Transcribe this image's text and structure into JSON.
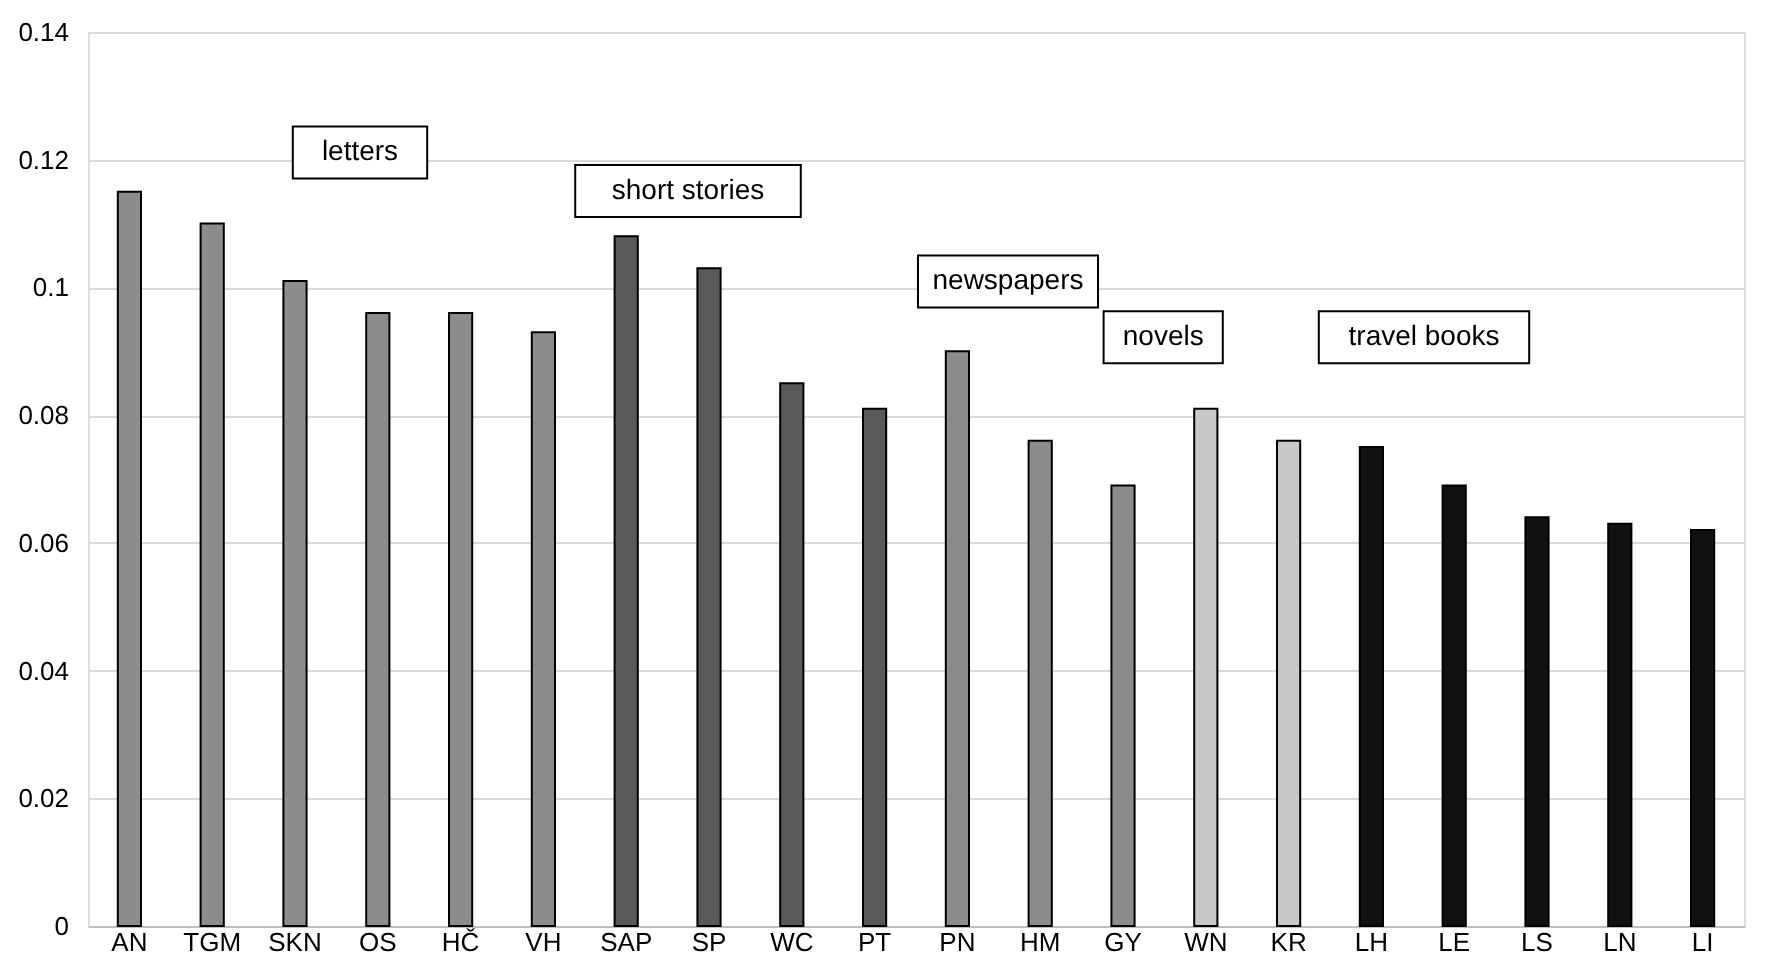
{
  "chart_data": {
    "type": "bar",
    "categories": [
      "AN",
      "TGM",
      "SKN",
      "OS",
      "HČ",
      "VH",
      "SAP",
      "SP",
      "WC",
      "PT",
      "PN",
      "HM",
      "GY",
      "WN",
      "KR",
      "LH",
      "LE",
      "LS",
      "LN",
      "LI"
    ],
    "values": [
      0.115,
      0.11,
      0.101,
      0.096,
      0.096,
      0.093,
      0.108,
      0.103,
      0.085,
      0.081,
      0.09,
      0.076,
      0.069,
      0.081,
      0.076,
      0.075,
      0.069,
      0.064,
      0.063,
      0.062
    ],
    "colors": [
      "#8c8c8c",
      "#8c8c8c",
      "#8c8c8c",
      "#8c8c8c",
      "#8c8c8c",
      "#8c8c8c",
      "#595959",
      "#595959",
      "#595959",
      "#595959",
      "#8c8c8c",
      "#8c8c8c",
      "#8c8c8c",
      "#c8c8c8",
      "#c8c8c8",
      "#111111",
      "#111111",
      "#111111",
      "#111111",
      "#111111"
    ],
    "ylim": [
      0,
      0.14
    ],
    "yticks": [
      0,
      0.02,
      0.04,
      0.06,
      0.08,
      0.1,
      0.12,
      0.14
    ],
    "grid": "y",
    "annotations": [
      "letters",
      "short stories",
      "newspapers",
      "novels",
      "travel books"
    ]
  }
}
